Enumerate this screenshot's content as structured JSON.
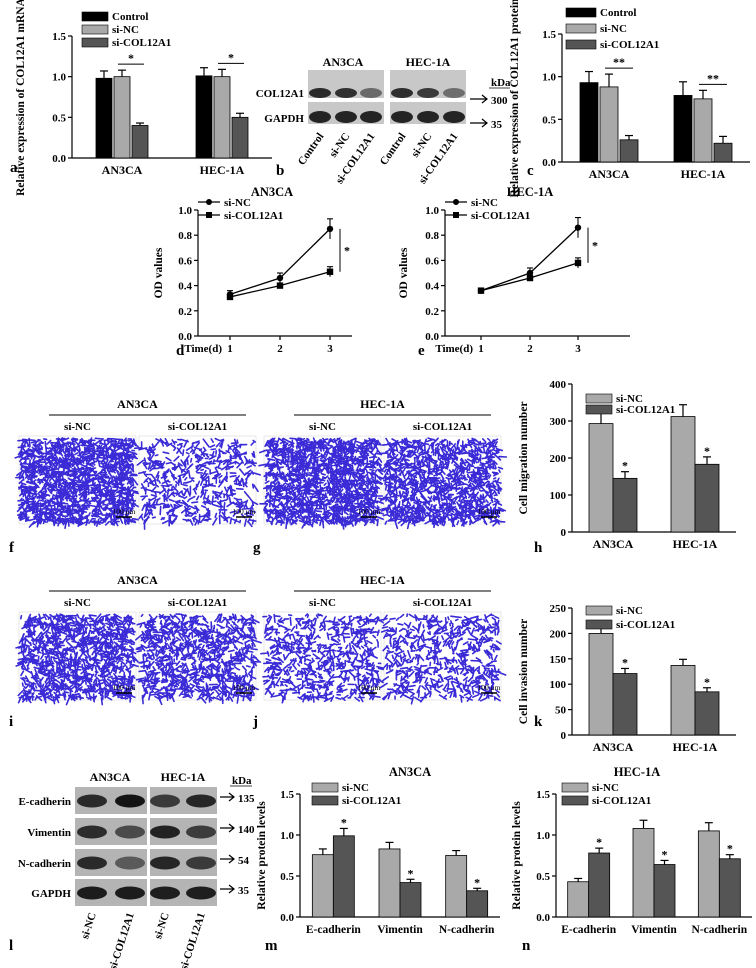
{
  "colors": {
    "control": "#000000",
    "si_nc": "#a9a9a9",
    "si_col": "#555555",
    "stain": "#3a2bd6"
  },
  "panel_letters": {
    "a": "a",
    "b": "b",
    "c": "c",
    "d": "d",
    "e": "e",
    "f": "f",
    "g": "g",
    "h": "h",
    "i": "i",
    "j": "j",
    "k": "k",
    "l": "l",
    "m": "m",
    "n": "n"
  },
  "sig": {
    "single": "*",
    "double": "**"
  },
  "blots": {
    "b": {
      "groups": [
        "AN3CA",
        "HEC-1A"
      ],
      "rows": [
        "COL12A1",
        "GAPDH"
      ],
      "kda_header": "kDa",
      "kda": [
        "300",
        "35"
      ],
      "lanes": [
        "Control",
        "si-NC",
        "si-COL12A1",
        "Control",
        "si-NC",
        "si-COL12A1"
      ]
    },
    "l": {
      "groups": [
        "AN3CA",
        "HEC-1A"
      ],
      "rows": [
        "E-cadherin",
        "Vimentin",
        "N-cadherin",
        "GAPDH"
      ],
      "kda_header": "kDa",
      "kda": [
        "135",
        "140",
        "54",
        "35"
      ],
      "lanes": [
        "si-NC",
        "si-COL12A1",
        "si-NC",
        "si-COL12A1"
      ]
    }
  },
  "micrographs": {
    "f": {
      "group": "AN3CA",
      "left": "si-NC",
      "right": "si-COL12A1",
      "scale": "100 μm"
    },
    "g": {
      "group": "HEC-1A",
      "left": "si-NC",
      "right": "si-COL12A1",
      "scale": "100 μm"
    },
    "i": {
      "group": "AN3CA",
      "left": "si-NC",
      "right": "si-COL12A1",
      "scale": "100 μm"
    },
    "j": {
      "group": "HEC-1A",
      "left": "si-NC",
      "right": "si-COL12A1",
      "scale": "100 μm"
    }
  },
  "chart_data": [
    {
      "id": "a",
      "type": "bar",
      "categories": [
        "AN3CA",
        "HEC-1A"
      ],
      "ylabel": "Relative expression of COL12A1 mRNA",
      "ylim": [
        0,
        1.5
      ],
      "yticks": [
        "0.0",
        "0.5",
        "1.0",
        "1.5"
      ],
      "series": [
        {
          "name": "Control",
          "values": [
            0.98,
            1.01
          ],
          "errors": [
            0.09,
            0.1
          ]
        },
        {
          "name": "si-NC",
          "values": [
            1.0,
            1.0
          ],
          "errors": [
            0.08,
            0.09
          ]
        },
        {
          "name": "si-COL12A1",
          "values": [
            0.4,
            0.5
          ],
          "errors": [
            0.03,
            0.05
          ]
        }
      ],
      "annotations": [
        "*",
        "*"
      ]
    },
    {
      "id": "c",
      "type": "bar",
      "categories": [
        "AN3CA",
        "HEC-1A"
      ],
      "ylabel": "Relative expression of COL12A1 protein",
      "ylim": [
        0,
        1.5
      ],
      "yticks": [
        "0.0",
        "0.5",
        "1.0",
        "1.5"
      ],
      "series": [
        {
          "name": "Control",
          "values": [
            0.93,
            0.78
          ],
          "errors": [
            0.13,
            0.16
          ]
        },
        {
          "name": "si-NC",
          "values": [
            0.88,
            0.74
          ],
          "errors": [
            0.15,
            0.1
          ]
        },
        {
          "name": "si-COL12A1",
          "values": [
            0.26,
            0.22
          ],
          "errors": [
            0.05,
            0.08
          ]
        }
      ],
      "annotations": [
        "**",
        "**"
      ]
    },
    {
      "id": "d",
      "type": "line",
      "title": "AN3CA",
      "xlabel": "Time(d)",
      "ylabel": "OD values",
      "x": [
        1,
        2,
        3
      ],
      "xticks": [
        "1",
        "2",
        "3"
      ],
      "ylim": [
        0,
        1.0
      ],
      "yticks": [
        "0.0",
        "0.2",
        "0.4",
        "0.6",
        "0.8",
        "1.0"
      ],
      "series": [
        {
          "name": "si-NC",
          "values": [
            0.33,
            0.46,
            0.85
          ],
          "errors": [
            0.03,
            0.04,
            0.08
          ]
        },
        {
          "name": "si-COL12A1",
          "values": [
            0.31,
            0.4,
            0.51
          ],
          "errors": [
            0.02,
            0.02,
            0.04
          ]
        }
      ],
      "annotations": [
        "*"
      ]
    },
    {
      "id": "e",
      "type": "line",
      "title": "HEC-1A",
      "xlabel": "Time(d)",
      "ylabel": "OD values",
      "x": [
        1,
        2,
        3
      ],
      "xticks": [
        "1",
        "2",
        "3"
      ],
      "ylim": [
        0,
        1.0
      ],
      "yticks": [
        "0.0",
        "0.2",
        "0.4",
        "0.6",
        "0.8",
        "1.0"
      ],
      "series": [
        {
          "name": "si-NC",
          "values": [
            0.36,
            0.5,
            0.86
          ],
          "errors": [
            0.02,
            0.04,
            0.08
          ]
        },
        {
          "name": "si-COL12A1",
          "values": [
            0.36,
            0.46,
            0.58
          ],
          "errors": [
            0.02,
            0.02,
            0.04
          ]
        }
      ],
      "annotations": [
        "*"
      ]
    },
    {
      "id": "h",
      "type": "bar",
      "categories": [
        "AN3CA",
        "HEC-1A"
      ],
      "ylabel": "Cell migration number",
      "ylim": [
        0,
        400
      ],
      "yticks": [
        "0",
        "100",
        "200",
        "300",
        "400"
      ],
      "series": [
        {
          "name": "si-NC",
          "values": [
            293,
            312
          ],
          "errors": [
            30,
            32
          ]
        },
        {
          "name": "si-COL12A1",
          "values": [
            145,
            183
          ],
          "errors": [
            18,
            20
          ]
        }
      ],
      "annotations": [
        "*",
        "*"
      ]
    },
    {
      "id": "k",
      "type": "bar",
      "categories": [
        "AN3CA",
        "HEC-1A"
      ],
      "ylabel": "Cell invasion number",
      "ylim": [
        0,
        250
      ],
      "yticks": [
        "0",
        "50",
        "100",
        "150",
        "200",
        "250"
      ],
      "series": [
        {
          "name": "si-NC",
          "values": [
            200,
            137
          ],
          "errors": [
            18,
            12
          ]
        },
        {
          "name": "si-COL12A1",
          "values": [
            121,
            85
          ],
          "errors": [
            10,
            8
          ]
        }
      ],
      "annotations": [
        "*",
        "*"
      ]
    },
    {
      "id": "m",
      "type": "bar",
      "title": "AN3CA",
      "categories": [
        "E-cadherin",
        "Vimentin",
        "N-cadherin"
      ],
      "ylabel": "Relative protein levels",
      "ylim": [
        0,
        1.5
      ],
      "yticks": [
        "0.0",
        "0.5",
        "1.0",
        "1.5"
      ],
      "series": [
        {
          "name": "si-NC",
          "values": [
            0.76,
            0.83,
            0.75
          ],
          "errors": [
            0.07,
            0.08,
            0.06
          ]
        },
        {
          "name": "si-COL12A1",
          "values": [
            0.99,
            0.42,
            0.32
          ],
          "errors": [
            0.09,
            0.04,
            0.03
          ]
        }
      ],
      "annotations": [
        "*",
        "*",
        "*"
      ]
    },
    {
      "id": "n",
      "type": "bar",
      "title": "HEC-1A",
      "categories": [
        "E-cadherin",
        "Vimentin",
        "N-cadherin"
      ],
      "ylabel": "Relative protein levels",
      "ylim": [
        0,
        1.5
      ],
      "yticks": [
        "0.0",
        "0.5",
        "1.0",
        "1.5"
      ],
      "series": [
        {
          "name": "si-NC",
          "values": [
            0.43,
            1.08,
            1.05
          ],
          "errors": [
            0.04,
            0.1,
            0.1
          ]
        },
        {
          "name": "si-COL12A1",
          "values": [
            0.78,
            0.64,
            0.71
          ],
          "errors": [
            0.06,
            0.05,
            0.05
          ]
        }
      ],
      "annotations": [
        "*",
        "*",
        "*"
      ]
    }
  ]
}
